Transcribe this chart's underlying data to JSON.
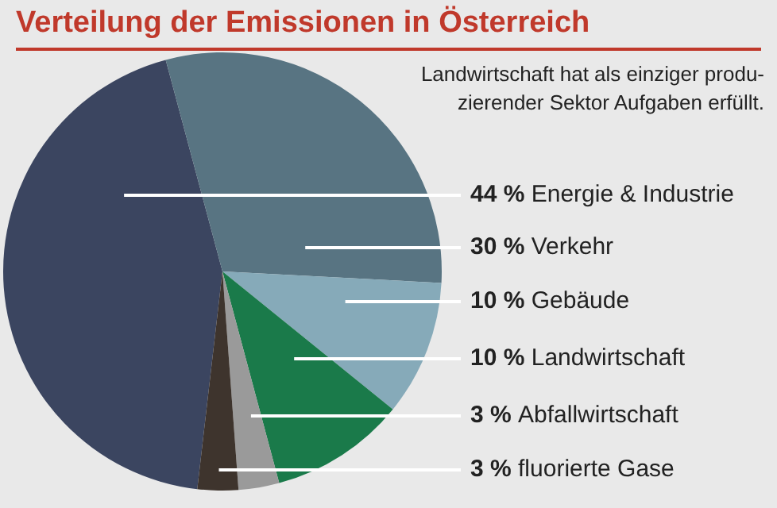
{
  "chart_data": {
    "type": "pie",
    "title": "Verteilung der Emissionen in Österreich",
    "annotations": [
      "Landwirtschaft hat als einziger produ-\nzierender Sektor Aufgaben erfüllt."
    ],
    "categories": [
      "Energie & Industrie",
      "Verkehr",
      "Gebäude",
      "Landwirtschaft",
      "Abfallwirtschaft",
      "fluorierte Gase"
    ],
    "values": [
      44,
      30,
      10,
      10,
      3,
      3
    ],
    "colors": [
      "#3b4560",
      "#587482",
      "#86aab9",
      "#1a7a4a",
      "#9a9a9a",
      "#3e342d"
    ],
    "value_labels": [
      "44 %",
      "30 %",
      "10 %",
      "10 %",
      "3 %",
      "3 %"
    ],
    "legend": false
  }
}
